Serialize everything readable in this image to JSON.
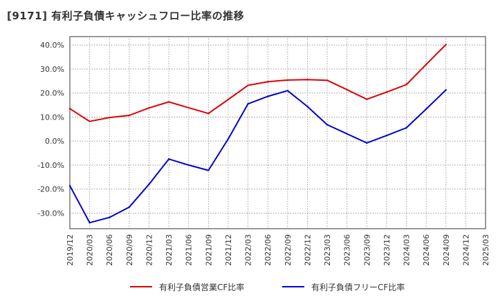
{
  "title": "[9171]  有利子負債キャッシュフロー比率の推移",
  "chart_data": {
    "type": "line",
    "title": "[9171]  有利子負債キャッシュフロー比率の推移",
    "x": [
      "2019/12",
      "2020/03",
      "2020/06",
      "2020/09",
      "2020/12",
      "2021/03",
      "2021/06",
      "2021/09",
      "2021/12",
      "2022/03",
      "2022/06",
      "2022/09",
      "2022/12",
      "2023/03",
      "2023/06",
      "2023/09",
      "2023/12",
      "2024/03",
      "2024/06",
      "2024/09",
      "2024/12",
      "2025/03"
    ],
    "ylim": [
      -36.5,
      43.5
    ],
    "yticks": [
      -30,
      -20,
      -10,
      0,
      10,
      20,
      30,
      40
    ],
    "ytick_labels": [
      "-30.0%",
      "-20.0%",
      "-10.0%",
      "0.0%",
      "10.0%",
      "20.0%",
      "30.0%",
      "40.0%"
    ],
    "grid": true,
    "legend_position": "bottom",
    "series": [
      {
        "name": "有利子負債営業CF比率",
        "color": "#dd0000",
        "values": [
          13.5,
          8.2,
          9.8,
          10.7,
          13.8,
          16.3,
          13.9,
          11.5,
          17.3,
          23.2,
          24.7,
          25.4,
          25.6,
          25.3,
          21.4,
          17.4,
          20.4,
          23.5,
          31.9,
          40.2,
          null,
          null
        ]
      },
      {
        "name": "有利子負債フリーCF比率",
        "color": "#0000cc",
        "values": [
          -18.6,
          -34.0,
          -31.8,
          -27.5,
          -18.0,
          -7.5,
          -10.0,
          -12.2,
          0.9,
          15.5,
          18.6,
          21.0,
          14.4,
          6.8,
          3.0,
          -0.8,
          2.3,
          5.5,
          13.3,
          21.3,
          null,
          null
        ]
      }
    ]
  }
}
